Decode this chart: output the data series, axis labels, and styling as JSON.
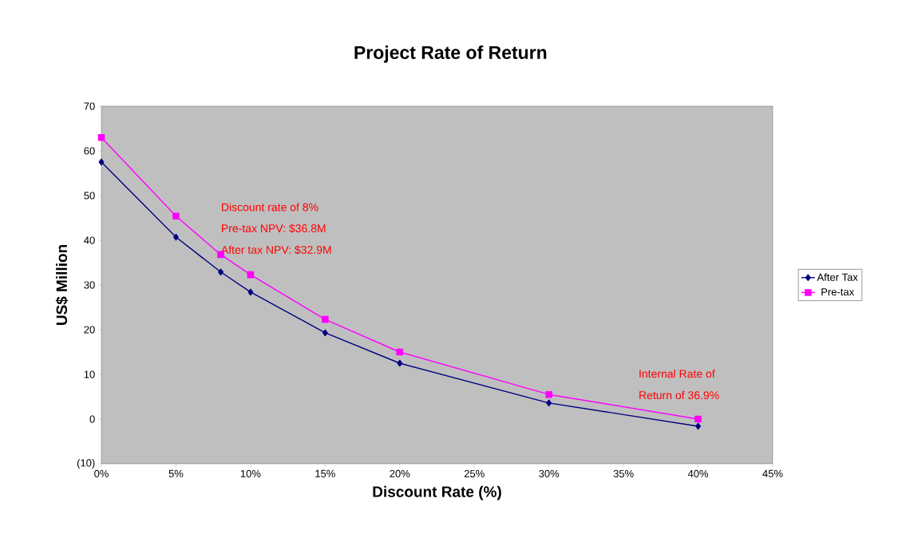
{
  "chart_data": {
    "type": "line",
    "title": "Project Rate of Return",
    "xlabel": "Discount Rate (%)",
    "ylabel": "US$ Million",
    "x": [
      0,
      5,
      8,
      10,
      15,
      20,
      30,
      40
    ],
    "series": [
      {
        "name": "After Tax",
        "color": "#000080",
        "marker": "diamond",
        "values": [
          57.5,
          40.7,
          32.9,
          28.4,
          19.3,
          12.5,
          3.6,
          -1.6
        ]
      },
      {
        "name": "Pre-tax",
        "color": "#ff00ff",
        "marker": "square",
        "values": [
          63.0,
          45.4,
          36.8,
          32.3,
          22.3,
          15.0,
          5.5,
          0.0
        ]
      }
    ],
    "xlim": [
      0,
      45
    ],
    "ylim": [
      -10,
      70
    ],
    "xticks": [
      {
        "value": 0,
        "label": "0%"
      },
      {
        "value": 5,
        "label": "5%"
      },
      {
        "value": 10,
        "label": "10%"
      },
      {
        "value": 15,
        "label": "15%"
      },
      {
        "value": 20,
        "label": "20%"
      },
      {
        "value": 25,
        "label": "25%"
      },
      {
        "value": 30,
        "label": "30%"
      },
      {
        "value": 35,
        "label": "35%"
      },
      {
        "value": 40,
        "label": "40%"
      },
      {
        "value": 45,
        "label": "45%"
      }
    ],
    "yticks": [
      {
        "value": -10,
        "label": "(10)"
      },
      0,
      10,
      20,
      30,
      40,
      50,
      60,
      70
    ],
    "annotations": [
      "Discount rate of 8%",
      "Pre-tax NPV: $36.8M",
      "After tax NPV: $32.9M",
      "Internal Rate of",
      "Return of 36.9%"
    ],
    "grid": false,
    "legend": "right",
    "line_style": "solid"
  }
}
